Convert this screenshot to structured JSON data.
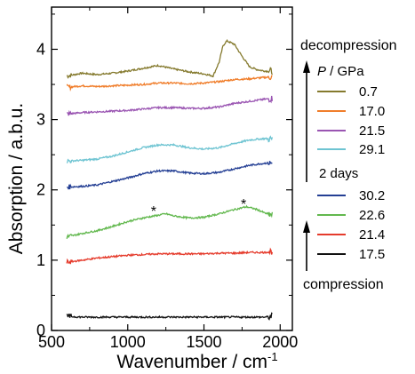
{
  "chart_data": {
    "type": "line",
    "xlabel": "Wavenumber / cm",
    "xlabel_sup": "-1",
    "ylabel": "Absorption / a.b.u.",
    "xlim": [
      500,
      2080
    ],
    "ylim": [
      0,
      4.6
    ],
    "xticks": [
      500,
      1000,
      1500,
      2000
    ],
    "yticks": [
      0,
      1,
      2,
      3,
      4
    ],
    "legend_title_italic": "P",
    "legend_title_rest": " / GPa",
    "annotations": {
      "top": "decompression",
      "middle": "2 days",
      "bottom": "compression"
    },
    "markers": [
      {
        "text": "*",
        "x": 1170,
        "y": 1.73
      },
      {
        "text": "*",
        "x": 1760,
        "y": 1.83
      }
    ],
    "series": [
      {
        "name": "0.7",
        "color": "#857a2e",
        "points": [
          [
            600,
            3.62
          ],
          [
            700,
            3.66
          ],
          [
            800,
            3.64
          ],
          [
            900,
            3.66
          ],
          [
            1000,
            3.69
          ],
          [
            1100,
            3.73
          ],
          [
            1200,
            3.77
          ],
          [
            1300,
            3.72
          ],
          [
            1400,
            3.68
          ],
          [
            1500,
            3.65
          ],
          [
            1560,
            3.62
          ],
          [
            1600,
            3.82
          ],
          [
            1625,
            4.05
          ],
          [
            1650,
            4.12
          ],
          [
            1700,
            4.07
          ],
          [
            1750,
            3.9
          ],
          [
            1800,
            3.75
          ],
          [
            1850,
            3.71
          ],
          [
            1900,
            3.69
          ],
          [
            1950,
            3.69
          ]
        ]
      },
      {
        "name": "17.0",
        "color": "#f07d2a",
        "points": [
          [
            600,
            3.46
          ],
          [
            700,
            3.48
          ],
          [
            800,
            3.47
          ],
          [
            900,
            3.48
          ],
          [
            1000,
            3.49
          ],
          [
            1100,
            3.5
          ],
          [
            1200,
            3.52
          ],
          [
            1300,
            3.52
          ],
          [
            1400,
            3.51
          ],
          [
            1500,
            3.52
          ],
          [
            1600,
            3.54
          ],
          [
            1700,
            3.57
          ],
          [
            1800,
            3.58
          ],
          [
            1900,
            3.6
          ],
          [
            1950,
            3.61
          ]
        ]
      },
      {
        "name": "21.5",
        "color": "#9a55b2",
        "points": [
          [
            600,
            3.08
          ],
          [
            700,
            3.1
          ],
          [
            800,
            3.11
          ],
          [
            900,
            3.12
          ],
          [
            1000,
            3.13
          ],
          [
            1100,
            3.15
          ],
          [
            1200,
            3.17
          ],
          [
            1300,
            3.17
          ],
          [
            1400,
            3.16
          ],
          [
            1500,
            3.16
          ],
          [
            1600,
            3.18
          ],
          [
            1700,
            3.23
          ],
          [
            1800,
            3.26
          ],
          [
            1900,
            3.29
          ],
          [
            1950,
            3.3
          ]
        ]
      },
      {
        "name": "29.1",
        "color": "#6ec4d2",
        "points": [
          [
            600,
            2.41
          ],
          [
            700,
            2.42
          ],
          [
            800,
            2.44
          ],
          [
            900,
            2.48
          ],
          [
            1000,
            2.54
          ],
          [
            1100,
            2.6
          ],
          [
            1200,
            2.64
          ],
          [
            1300,
            2.64
          ],
          [
            1400,
            2.6
          ],
          [
            1500,
            2.58
          ],
          [
            1600,
            2.6
          ],
          [
            1700,
            2.66
          ],
          [
            1800,
            2.71
          ],
          [
            1900,
            2.73
          ],
          [
            1950,
            2.72
          ]
        ]
      },
      {
        "name": "30.2",
        "color": "#243f94",
        "points": [
          [
            600,
            2.04
          ],
          [
            700,
            2.05
          ],
          [
            800,
            2.07
          ],
          [
            900,
            2.12
          ],
          [
            1000,
            2.17
          ],
          [
            1100,
            2.23
          ],
          [
            1200,
            2.27
          ],
          [
            1300,
            2.27
          ],
          [
            1400,
            2.24
          ],
          [
            1500,
            2.23
          ],
          [
            1600,
            2.25
          ],
          [
            1700,
            2.3
          ],
          [
            1800,
            2.35
          ],
          [
            1900,
            2.38
          ],
          [
            1950,
            2.38
          ]
        ]
      },
      {
        "name": "22.6",
        "color": "#62b84e",
        "points": [
          [
            600,
            1.33
          ],
          [
            700,
            1.38
          ],
          [
            800,
            1.42
          ],
          [
            900,
            1.48
          ],
          [
            1000,
            1.55
          ],
          [
            1100,
            1.6
          ],
          [
            1200,
            1.64
          ],
          [
            1250,
            1.66
          ],
          [
            1300,
            1.63
          ],
          [
            1400,
            1.6
          ],
          [
            1500,
            1.61
          ],
          [
            1600,
            1.66
          ],
          [
            1700,
            1.72
          ],
          [
            1780,
            1.76
          ],
          [
            1850,
            1.72
          ],
          [
            1900,
            1.67
          ],
          [
            1950,
            1.64
          ]
        ]
      },
      {
        "name": "21.4",
        "color": "#e53b2c",
        "points": [
          [
            600,
            0.97
          ],
          [
            700,
            1.0
          ],
          [
            800,
            1.03
          ],
          [
            900,
            1.05
          ],
          [
            1000,
            1.07
          ],
          [
            1100,
            1.08
          ],
          [
            1200,
            1.09
          ],
          [
            1300,
            1.09
          ],
          [
            1400,
            1.09
          ],
          [
            1500,
            1.09
          ],
          [
            1600,
            1.1
          ],
          [
            1700,
            1.1
          ],
          [
            1800,
            1.11
          ],
          [
            1900,
            1.11
          ],
          [
            1950,
            1.13
          ]
        ]
      },
      {
        "name": "17.5",
        "color": "#111111",
        "points": [
          [
            600,
            0.2
          ],
          [
            700,
            0.19
          ],
          [
            800,
            0.19
          ],
          [
            900,
            0.19
          ],
          [
            1000,
            0.19
          ],
          [
            1100,
            0.19
          ],
          [
            1200,
            0.19
          ],
          [
            1300,
            0.19
          ],
          [
            1400,
            0.19
          ],
          [
            1500,
            0.19
          ],
          [
            1600,
            0.19
          ],
          [
            1700,
            0.19
          ],
          [
            1800,
            0.19
          ],
          [
            1900,
            0.19
          ],
          [
            1950,
            0.2
          ]
        ]
      }
    ]
  }
}
